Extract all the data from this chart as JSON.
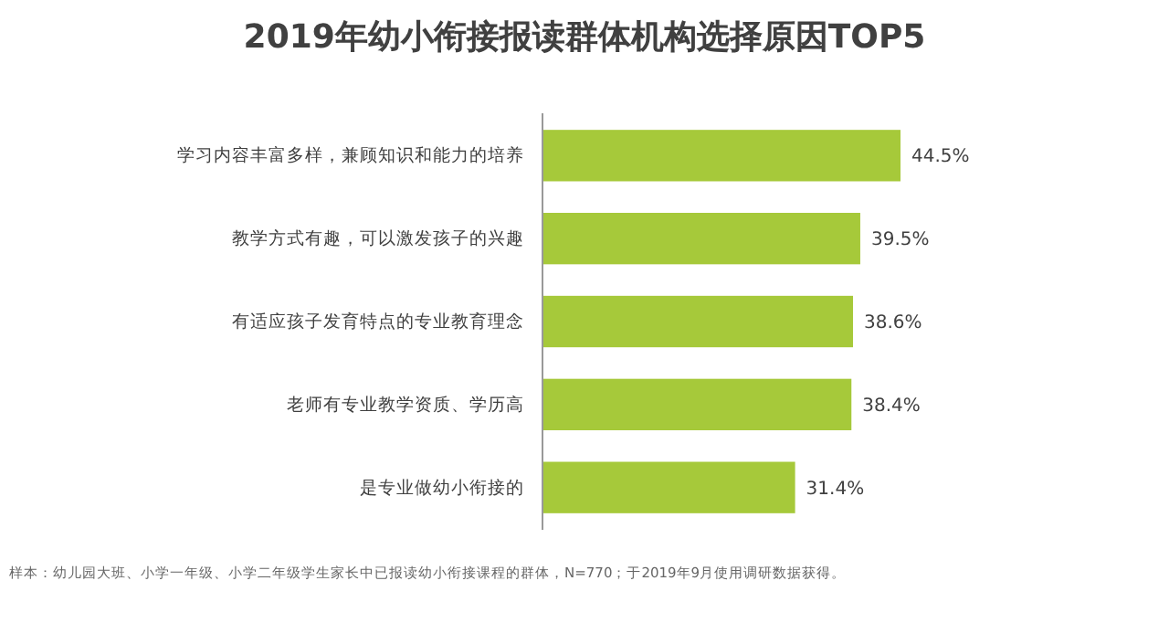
{
  "chart_data": {
    "type": "bar",
    "orientation": "horizontal",
    "title": "2019年幼小衔接报读群体机构选择原因TOP5",
    "categories": [
      "学习内容丰富多样，兼顾知识和能力的培养",
      "教学方式有趣，可以激发孩子的兴趣",
      "有适应孩子发育特点的专业教育理念",
      "老师有专业教学资质、学历高",
      "是专业做幼小衔接的"
    ],
    "values": [
      44.5,
      39.5,
      38.6,
      38.4,
      31.4
    ],
    "value_labels": [
      "44.5%",
      "39.5%",
      "38.6%",
      "38.4%",
      "31.4%"
    ],
    "color": "#a6c93a",
    "annotations": [
      "样本：幼儿园大班、小学一年级、小学二年级学生家长中已报读幼小衔接课程的群体，N=770；于2019年9月使用调研数据获得。"
    ]
  }
}
